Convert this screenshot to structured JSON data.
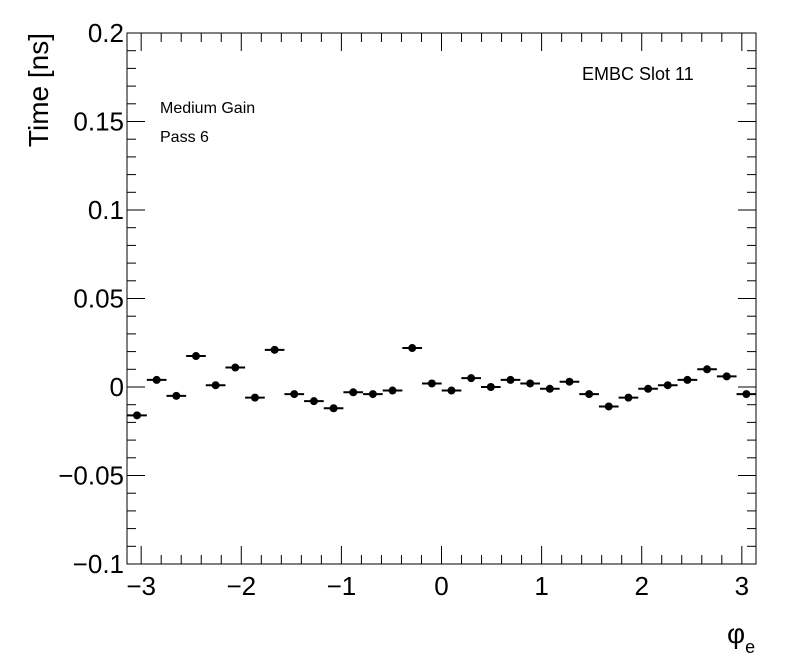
{
  "chart_data": {
    "type": "scatter",
    "title": "",
    "xlabel": "φ",
    "xlabel_subscript": "e",
    "ylabel": "Time [ns]",
    "xlim": [
      -3.14159,
      3.14159
    ],
    "ylim": [
      -0.1,
      0.2
    ],
    "x_ticks": [
      -3,
      -2,
      -1,
      0,
      1,
      2,
      3
    ],
    "x_tick_labels": [
      "−3",
      "−2",
      "−1",
      "0",
      "1",
      "2",
      "3"
    ],
    "y_ticks": [
      -0.1,
      -0.05,
      0,
      0.05,
      0.1,
      0.15,
      0.2
    ],
    "y_tick_labels": [
      "−0.1",
      "−0.05",
      "0",
      "0.05",
      "0.1",
      "0.15",
      "0.2"
    ],
    "grid": false,
    "annotations": {
      "slot": "EMBC Slot 11",
      "line1": "Medium Gain",
      "line2": "Pass 6"
    },
    "series": [
      {
        "x": [
          -3.0416,
          -2.8453,
          -2.6489,
          -2.4526,
          -2.2562,
          -2.0599,
          -1.8635,
          -1.6672,
          -1.4708,
          -1.2744,
          -1.0781,
          -0.8817,
          -0.6854,
          -0.489,
          -0.2927,
          -0.0963,
          0.1,
          0.2964,
          0.4927,
          0.6891,
          0.8854,
          1.0818,
          1.2781,
          1.4745,
          1.6708,
          1.8672,
          2.0635,
          2.2599,
          2.4562,
          2.6526,
          2.849,
          3.0453
        ],
        "y": [
          -0.016,
          0.004,
          -0.005,
          0.0175,
          0.001,
          0.011,
          -0.006,
          0.021,
          -0.004,
          -0.008,
          -0.012,
          -0.003,
          -0.004,
          -0.002,
          0.022,
          0.002,
          -0.002,
          0.005,
          0.0,
          0.004,
          0.002,
          -0.001,
          0.003,
          -0.004,
          -0.011,
          -0.006,
          -0.001,
          0.001,
          0.004,
          0.01,
          0.006,
          -0.004
        ]
      }
    ]
  }
}
